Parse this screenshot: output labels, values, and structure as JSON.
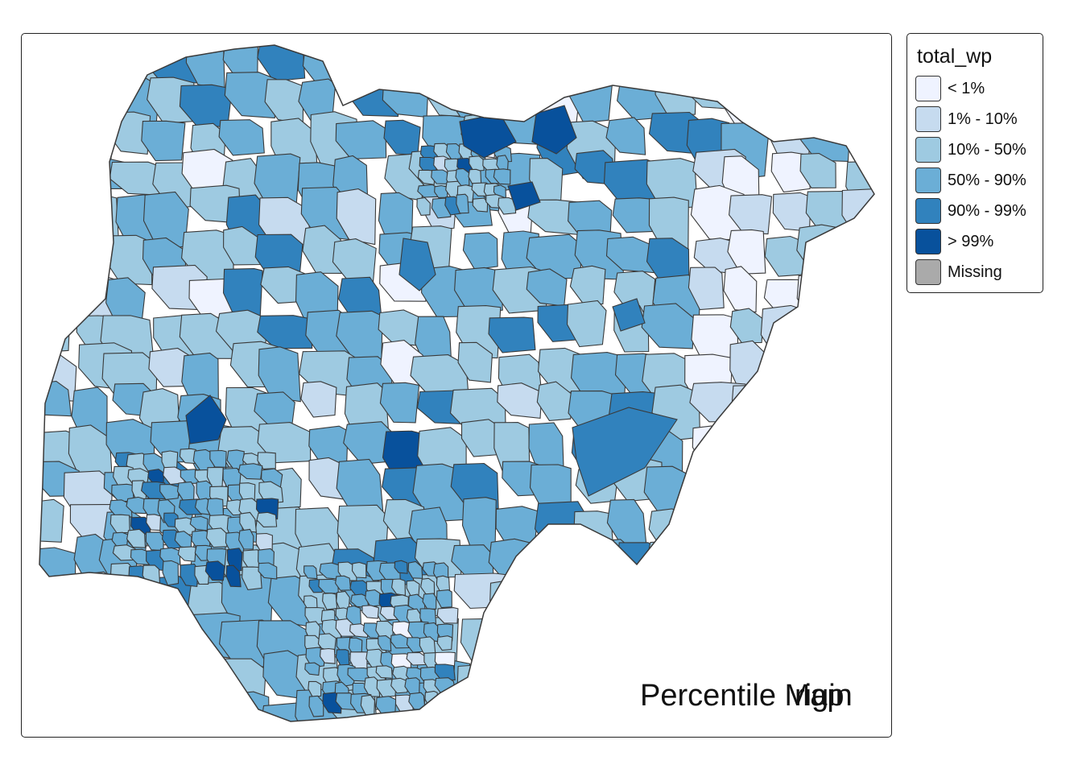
{
  "map": {
    "title_texts": [
      "Percentile Map",
      "rigin"
    ],
    "region_stroke": "#3a3a3a",
    "background": "#ffffff"
  },
  "legend": {
    "title": "total_wp",
    "items": [
      {
        "label": "< 1%",
        "color": "#eff3ff"
      },
      {
        "label": "1% - 10%",
        "color": "#c6dbef"
      },
      {
        "label": "10% - 50%",
        "color": "#9ecae1"
      },
      {
        "label": "50% - 90%",
        "color": "#6baed6"
      },
      {
        "label": "90% - 99%",
        "color": "#3182bd"
      },
      {
        "label": "> 99%",
        "color": "#08519c"
      },
      {
        "label": "Missing",
        "color": "#aaaaaa"
      }
    ]
  }
}
